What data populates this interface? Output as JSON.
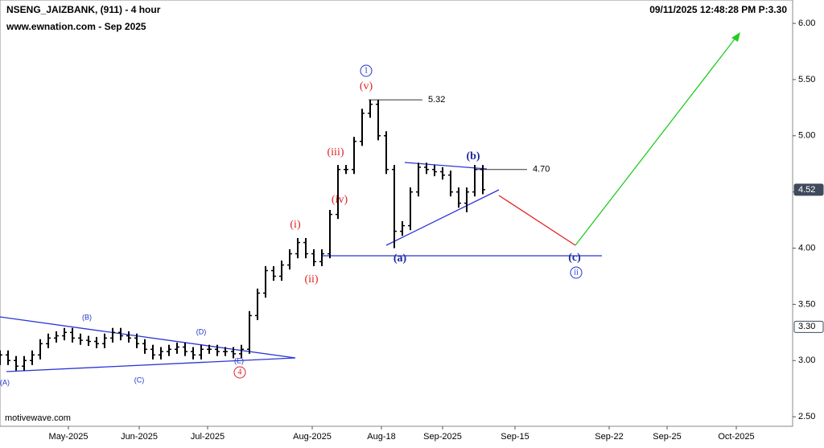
{
  "chart_data": {
    "type": "ohlc",
    "title": "NSENG_JAIZBANK, (911) - 4 hour",
    "subtitle": "www.ewnation.com  - Sep 2025",
    "timestamp": "09/11/2025 12:48:28 PM  P:3.30",
    "watermark": "motivewave.com",
    "color": "#000000",
    "x": [
      0,
      2,
      4,
      6,
      8,
      10,
      12,
      14,
      16,
      18,
      20,
      22,
      24,
      26,
      28,
      30,
      32,
      34,
      36,
      38,
      40,
      42,
      44,
      46,
      48,
      50,
      52,
      54,
      56,
      58,
      60,
      62,
      64,
      66,
      68,
      70,
      72,
      74,
      76,
      78,
      80,
      82,
      84,
      86,
      88,
      90,
      92,
      94,
      96,
      98,
      100,
      102,
      104,
      106,
      108,
      110,
      112,
      114,
      116,
      118,
      120
    ],
    "open": [
      3.0,
      3.05,
      3.0,
      2.95,
      3.0,
      3.05,
      3.15,
      3.2,
      3.22,
      3.25,
      3.2,
      3.18,
      3.17,
      3.15,
      3.2,
      3.25,
      3.22,
      3.2,
      3.15,
      3.1,
      3.05,
      3.08,
      3.1,
      3.12,
      3.08,
      3.05,
      3.1,
      3.1,
      3.08,
      3.08,
      3.06,
      3.1,
      3.4,
      3.6,
      3.8,
      3.75,
      3.85,
      3.95,
      4.05,
      3.95,
      3.88,
      3.95,
      4.3,
      4.7,
      4.7,
      4.95,
      5.2,
      5.28,
      5.0,
      4.7,
      4.15,
      4.2,
      4.5,
      4.72,
      4.7,
      4.68,
      4.65,
      4.5,
      4.4,
      4.5,
      4.7
    ],
    "high": [
      3.09,
      3.09,
      3.04,
      3.04,
      3.09,
      3.19,
      3.24,
      3.26,
      3.29,
      3.29,
      3.24,
      3.22,
      3.21,
      3.24,
      3.29,
      3.29,
      3.26,
      3.24,
      3.19,
      3.14,
      3.12,
      3.14,
      3.16,
      3.16,
      3.12,
      3.14,
      3.14,
      3.14,
      3.12,
      3.12,
      3.14,
      3.44,
      3.64,
      3.84,
      3.84,
      3.89,
      3.99,
      4.09,
      4.09,
      3.99,
      3.99,
      4.34,
      4.74,
      4.74,
      4.99,
      5.24,
      5.32,
      5.32,
      5.04,
      4.74,
      4.24,
      4.54,
      4.76,
      4.76,
      4.74,
      4.72,
      4.69,
      4.54,
      4.54,
      4.74,
      4.74
    ],
    "low": [
      2.96,
      2.96,
      2.91,
      2.91,
      2.96,
      3.01,
      3.11,
      3.16,
      3.18,
      3.16,
      3.14,
      3.13,
      3.11,
      3.11,
      3.16,
      3.18,
      3.16,
      3.11,
      3.06,
      3.01,
      3.01,
      3.04,
      3.06,
      3.04,
      3.01,
      3.01,
      3.06,
      3.04,
      3.04,
      3.02,
      3.02,
      3.06,
      3.36,
      3.56,
      3.71,
      3.71,
      3.81,
      3.91,
      3.91,
      3.84,
      3.84,
      3.91,
      4.26,
      4.66,
      4.66,
      4.91,
      5.16,
      4.96,
      4.66,
      4.0,
      4.11,
      4.16,
      4.46,
      4.66,
      4.64,
      4.61,
      4.46,
      4.36,
      4.32,
      4.46,
      4.48
    ],
    "close": [
      3.05,
      3.0,
      2.95,
      3.0,
      3.05,
      3.15,
      3.2,
      3.22,
      3.25,
      3.2,
      3.18,
      3.17,
      3.15,
      3.2,
      3.25,
      3.22,
      3.2,
      3.15,
      3.1,
      3.05,
      3.08,
      3.1,
      3.12,
      3.08,
      3.05,
      3.1,
      3.1,
      3.08,
      3.08,
      3.06,
      3.1,
      3.4,
      3.6,
      3.8,
      3.75,
      3.85,
      3.95,
      4.05,
      3.95,
      3.88,
      3.95,
      4.3,
      4.7,
      4.7,
      4.95,
      5.2,
      5.28,
      5.0,
      4.7,
      4.15,
      4.2,
      4.5,
      4.72,
      4.7,
      4.68,
      4.65,
      4.5,
      4.4,
      4.5,
      4.7,
      4.52
    ],
    "xlim": [
      0,
      197
    ],
    "xticks": [
      {
        "value": 17,
        "label": "May-2025"
      },
      {
        "value": 34.6,
        "label": "Jun-2025"
      },
      {
        "value": 51.6,
        "label": "Jul-2025"
      },
      {
        "value": 77.6,
        "label": "Aug-2025"
      },
      {
        "value": 94.8,
        "label": "Aug-18"
      },
      {
        "value": 110,
        "label": "Sep-2025"
      },
      {
        "value": 128,
        "label": "Sep-15"
      },
      {
        "value": 151.4,
        "label": "Sep-22"
      },
      {
        "value": 165.8,
        "label": "Sep-25"
      },
      {
        "value": 183,
        "label": "Oct-2025"
      }
    ],
    "ylim": [
      2.415,
      6.208
    ],
    "yticks": [
      {
        "value": 6,
        "label": "6.00"
      },
      {
        "value": 5.5,
        "label": "5.50"
      },
      {
        "value": 5,
        "label": "5.00"
      },
      {
        "value": 4.5,
        "label": "4.50"
      },
      {
        "value": 4,
        "label": "4.00"
      },
      {
        "value": 3.5,
        "label": "3.50"
      },
      {
        "value": 3,
        "label": "3.00"
      },
      {
        "value": 2.5,
        "label": "2.50"
      }
    ],
    "levels": [
      5.32,
      {
        "value": 4.7,
        "label": "4.70"
      }
    ],
    "price_markers": [
      {
        "value": 4.52,
        "label": "4.52"
      },
      {
        "value": 3.3,
        "label": "3.30"
      }
    ],
    "wave_labels": [
      "1",
      "(v)",
      "(iii)",
      "(iv)",
      "(i)",
      "(ii)",
      "(a)",
      "(b)",
      "(c)",
      "ii",
      "4",
      "(A)",
      "(B)",
      "(C)",
      "(D)",
      "(E)"
    ]
  }
}
